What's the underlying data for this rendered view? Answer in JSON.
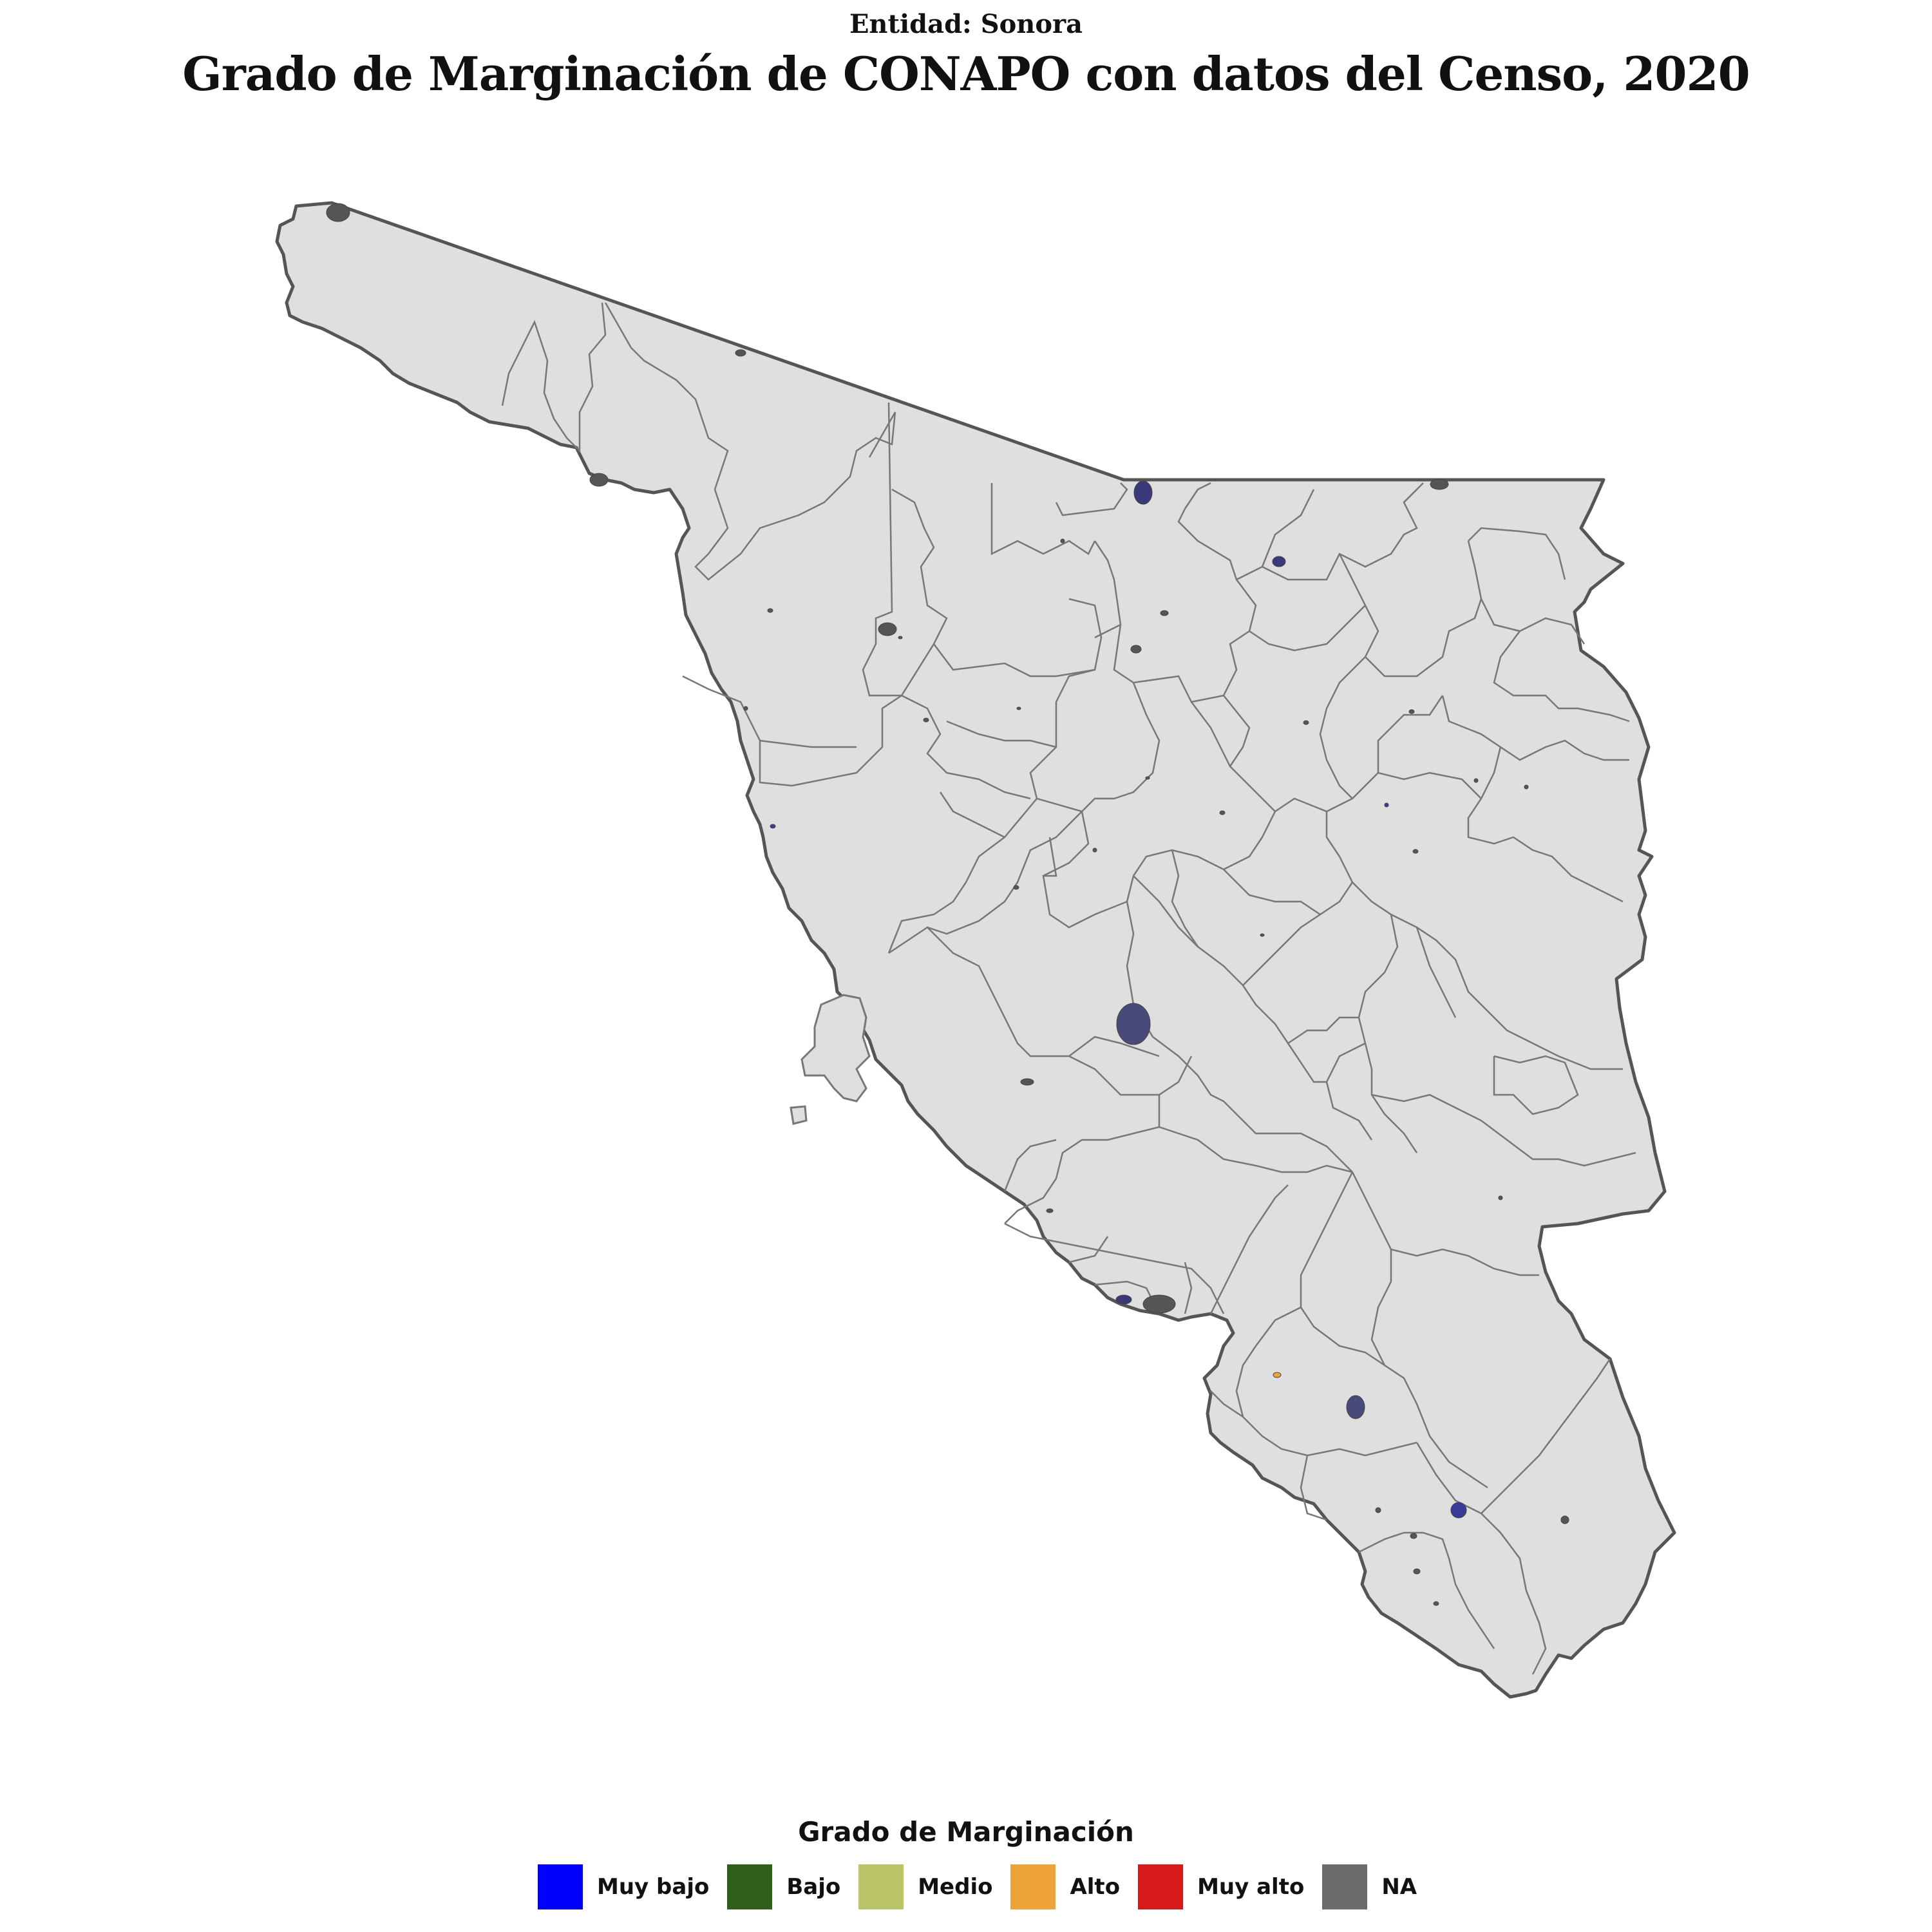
{
  "header": {
    "subtitle": "Entidad: Sonora",
    "title": "Grado de Marginación de CONAPO con datos del Censo, 2020"
  },
  "legend": {
    "title": "Grado de Marginación",
    "items": [
      {
        "label": "Muy bajo",
        "color": "#0000ff"
      },
      {
        "label": "Bajo",
        "color": "#2f5f1b"
      },
      {
        "label": "Medio",
        "color": "#bcc46a"
      },
      {
        "label": "Alto",
        "color": "#eda339"
      },
      {
        "label": "Muy alto",
        "color": "#d7191c"
      },
      {
        "label": "NA",
        "color": "#6b6b6b"
      }
    ]
  },
  "map": {
    "land_color": "#dfdfdf",
    "border_color": "#555555",
    "municipal_line_color": "#777777"
  }
}
